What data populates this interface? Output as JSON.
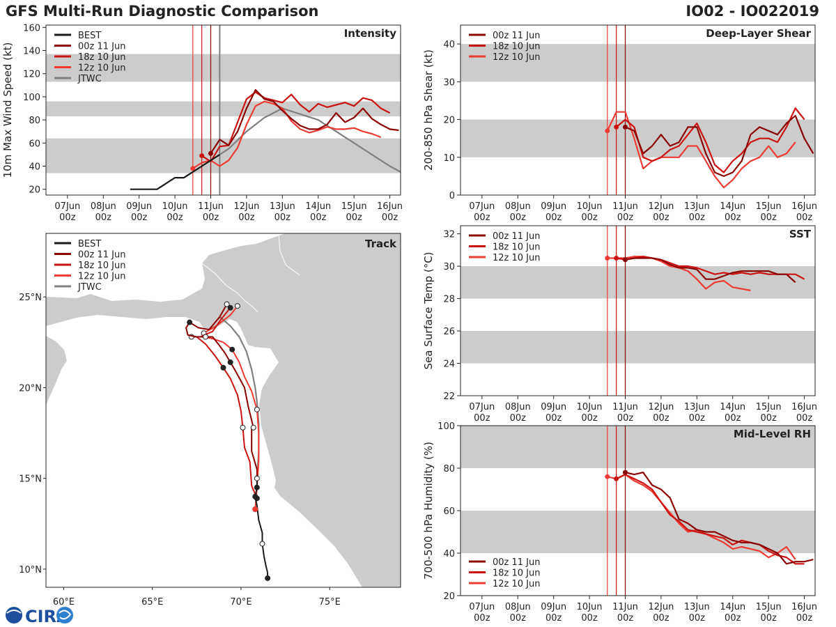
{
  "header": {
    "title": "GFS Multi-Run Diagnostic Comparison",
    "storm_id": "IO02 - IO022019"
  },
  "logo": {
    "text": "CIRA"
  },
  "colors": {
    "best": "#1a1a1a",
    "run00z11": "#8b0000",
    "run18z10": "#cc1111",
    "run12z10": "#ee3a33",
    "jtwc": "#808080",
    "band": "#cccccc",
    "axis": "#222222"
  },
  "time_axis": {
    "ticks": [
      {
        "t": 0,
        "day": "07Jun",
        "hour": "00z"
      },
      {
        "t": 1,
        "day": "08Jun",
        "hour": "00z"
      },
      {
        "t": 2,
        "day": "09Jun",
        "hour": "00z"
      },
      {
        "t": 3,
        "day": "10Jun",
        "hour": "00z"
      },
      {
        "t": 4,
        "day": "11Jun",
        "hour": "00z"
      },
      {
        "t": 5,
        "day": "12Jun",
        "hour": "00z"
      },
      {
        "t": 6,
        "day": "13Jun",
        "hour": "00z"
      },
      {
        "t": 7,
        "day": "14Jun",
        "hour": "00z"
      },
      {
        "t": 8,
        "day": "15Jun",
        "hour": "00z"
      },
      {
        "t": 9,
        "day": "16Jun",
        "hour": "00z"
      }
    ],
    "range": [
      -0.6,
      9.3
    ],
    "init_lines": [
      {
        "t": 3.5,
        "run": "run12z10"
      },
      {
        "t": 3.75,
        "run": "run18z10"
      },
      {
        "t": 4.0,
        "run": "run00z11"
      }
    ],
    "current_line": {
      "t": 4.25,
      "run": "jtwc"
    }
  },
  "chart_data": [
    {
      "id": "intensity",
      "type": "line",
      "title": "Intensity",
      "ylabel": "10m Max Wind Speed (kt)",
      "ylim": [
        15,
        162
      ],
      "yticks": [
        20,
        40,
        60,
        80,
        100,
        120,
        140,
        160
      ],
      "bands": [
        [
          34,
          64
        ],
        [
          83,
          96
        ],
        [
          113,
          137
        ]
      ],
      "legend": [
        "BEST",
        "00z 11 Jun",
        "18z 10 Jun",
        "12z 10 Jun",
        "JTWC"
      ],
      "legend_position": "top-left",
      "series": [
        {
          "name": "BEST",
          "color_key": "best",
          "x": [
            1.75,
            2.0,
            2.25,
            2.5,
            2.75,
            3.0,
            3.25,
            3.5,
            3.75,
            4.0,
            4.25
          ],
          "y": [
            20,
            20,
            20,
            20,
            25,
            30,
            30,
            35,
            40,
            45,
            50
          ]
        },
        {
          "name": "00z 11 Jun",
          "color_key": "run00z11",
          "x": [
            4.0,
            4.25,
            4.5,
            4.75,
            5.0,
            5.25,
            5.5,
            5.75,
            6.0,
            6.25,
            6.5,
            6.75,
            7.0,
            7.25,
            7.5,
            7.75,
            8.0,
            8.25,
            8.5,
            8.75,
            9.0,
            9.25
          ],
          "y": [
            51,
            63,
            58,
            70,
            90,
            106,
            98,
            96,
            88,
            81,
            75,
            72,
            72,
            76,
            86,
            78,
            82,
            90,
            81,
            76,
            72,
            71
          ]
        },
        {
          "name": "18z 10 Jun",
          "color_key": "run18z10",
          "x": [
            3.75,
            4.0,
            4.25,
            4.5,
            4.75,
            5.0,
            5.25,
            5.5,
            5.75,
            6.0,
            6.25,
            6.5,
            6.75,
            7.0,
            7.25,
            7.5,
            7.75,
            8.0,
            8.25,
            8.5,
            8.75,
            9.0
          ],
          "y": [
            49,
            44,
            57,
            58,
            78,
            98,
            104,
            99,
            97,
            95,
            102,
            93,
            87,
            94,
            91,
            93,
            95,
            92,
            99,
            97,
            90,
            86
          ]
        },
        {
          "name": "12z 10 Jun",
          "color_key": "run12z10",
          "x": [
            3.5,
            3.75,
            4.0,
            4.25,
            4.5,
            4.75,
            5.0,
            5.25,
            5.5,
            5.75,
            6.0,
            6.25,
            6.5,
            6.75,
            7.0,
            7.25,
            7.5,
            7.75,
            8.0,
            8.25,
            8.5,
            8.75
          ],
          "y": [
            38,
            43,
            45,
            40,
            45,
            56,
            76,
            92,
            96,
            94,
            90,
            79,
            72,
            69,
            71,
            74,
            72,
            72,
            73,
            70,
            68,
            65
          ]
        },
        {
          "name": "JTWC",
          "color_key": "jtwc",
          "x": [
            4.25,
            4.5,
            5.0,
            5.5,
            6.0,
            6.5,
            7.0,
            7.5,
            8.0,
            8.5,
            9.0,
            9.3
          ],
          "y": [
            50,
            55,
            70,
            82,
            90,
            85,
            80,
            70,
            60,
            50,
            40,
            35
          ]
        }
      ]
    },
    {
      "id": "shear",
      "type": "line",
      "title": "Deep-Layer Shear",
      "ylabel": "200-850 hPa Shear (kt)",
      "ylim": [
        0,
        45
      ],
      "yticks": [
        0,
        10,
        20,
        30,
        40
      ],
      "bands": [
        [
          10,
          20
        ],
        [
          30,
          40
        ]
      ],
      "legend": [
        "00z 11 Jun",
        "18z 10 Jun",
        "12z 10 Jun"
      ],
      "legend_position": "top-left",
      "series": [
        {
          "name": "00z 11 Jun",
          "color_key": "run00z11",
          "x": [
            4.0,
            4.25,
            4.5,
            4.75,
            5.0,
            5.25,
            5.5,
            5.75,
            6.0,
            6.25,
            6.5,
            6.75,
            7.0,
            7.25,
            7.5,
            7.75,
            8.0,
            8.25,
            8.5,
            8.75,
            9.0,
            9.25
          ],
          "y": [
            18,
            17,
            11,
            13,
            16,
            13,
            14,
            18,
            18,
            11,
            6,
            5,
            6,
            9,
            16,
            18,
            17,
            16,
            19,
            21,
            15,
            11
          ]
        },
        {
          "name": "18z 10 Jun",
          "color_key": "run18z10",
          "x": [
            3.75,
            4.0,
            4.25,
            4.5,
            4.75,
            5.0,
            5.25,
            5.5,
            5.75,
            6.0,
            6.25,
            6.5,
            6.75,
            7.0,
            7.25,
            7.5,
            7.75,
            8.0,
            8.25,
            8.5,
            8.75,
            9.0
          ],
          "y": [
            18,
            20,
            18,
            10,
            9,
            10,
            12,
            13,
            16,
            19,
            14,
            8,
            6,
            9,
            11,
            14,
            15,
            15,
            14,
            18,
            23,
            20
          ]
        },
        {
          "name": "12z 10 Jun",
          "color_key": "run12z10",
          "x": [
            3.5,
            3.75,
            4.0,
            4.25,
            4.5,
            4.75,
            5.0,
            5.25,
            5.5,
            5.75,
            6.0,
            6.25,
            6.5,
            6.75,
            7.0,
            7.25,
            7.5,
            7.75,
            8.0,
            8.25,
            8.5,
            8.75
          ],
          "y": [
            17,
            22,
            22,
            15,
            7,
            9,
            10,
            10,
            10,
            13,
            13,
            9,
            5,
            2,
            4,
            7,
            9,
            10,
            13,
            10,
            11,
            14
          ]
        }
      ]
    },
    {
      "id": "sst",
      "type": "line",
      "title": "SST",
      "ylabel": "Sea Surface Temp (°C)",
      "ylim": [
        22,
        32.5
      ],
      "yticks": [
        22,
        24,
        26,
        28,
        30,
        32
      ],
      "bands": [
        [
          24,
          26
        ],
        [
          28,
          30
        ]
      ],
      "legend": [
        "00z 11 Jun",
        "18z 10 Jun",
        "12z 10 Jun"
      ],
      "legend_position": "top-left",
      "series": [
        {
          "name": "00z 11 Jun",
          "color_key": "run00z11",
          "x": [
            4.0,
            4.25,
            4.5,
            4.75,
            5.0,
            5.25,
            5.5,
            5.75,
            6.0,
            6.25,
            6.5,
            6.75,
            7.0,
            7.25,
            7.5,
            7.75,
            8.0,
            8.25,
            8.5,
            8.75
          ],
          "y": [
            30.4,
            30.5,
            30.5,
            30.5,
            30.4,
            30.1,
            29.9,
            29.9,
            29.8,
            29.2,
            29.2,
            29.4,
            29.6,
            29.7,
            29.7,
            29.7,
            29.7,
            29.5,
            29.5,
            29.0
          ]
        },
        {
          "name": "18z 10 Jun",
          "color_key": "run18z10",
          "x": [
            3.75,
            4.0,
            4.25,
            4.5,
            4.75,
            5.0,
            5.25,
            5.5,
            5.75,
            6.0,
            6.25,
            6.5,
            6.75,
            7.0,
            7.25,
            7.5,
            7.75,
            8.0,
            8.25,
            8.5,
            8.75,
            9.0
          ],
          "y": [
            30.5,
            30.4,
            30.5,
            30.6,
            30.5,
            30.4,
            30.2,
            30.0,
            30.0,
            29.9,
            29.7,
            29.5,
            29.6,
            29.5,
            29.6,
            29.5,
            29.6,
            29.5,
            29.5,
            29.5,
            29.5,
            29.2
          ]
        },
        {
          "name": "12z 10 Jun",
          "color_key": "run12z10",
          "x": [
            3.5,
            3.75,
            4.0,
            4.25,
            4.5,
            4.75,
            5.0,
            5.25,
            5.5,
            5.75,
            6.0,
            6.25,
            6.5,
            6.75,
            7.0,
            7.25,
            7.5
          ],
          "y": [
            30.5,
            30.5,
            30.5,
            30.6,
            30.6,
            30.5,
            30.3,
            30.0,
            29.9,
            29.7,
            29.2,
            28.6,
            29.0,
            29.1,
            28.7,
            28.6,
            28.5
          ]
        }
      ]
    },
    {
      "id": "rh",
      "type": "line",
      "title": "Mid-Level RH",
      "ylabel": "700-500 hPa Humidity (%)",
      "ylim": [
        20,
        100
      ],
      "yticks": [
        20,
        40,
        60,
        80,
        100
      ],
      "bands": [
        [
          40,
          60
        ],
        [
          80,
          100
        ]
      ],
      "legend": [
        "00z 11 Jun",
        "18z 10 Jun",
        "12z 10 Jun"
      ],
      "legend_position": "bottom-left",
      "series": [
        {
          "name": "00z 11 Jun",
          "color_key": "run00z11",
          "x": [
            4.0,
            4.25,
            4.5,
            4.75,
            5.0,
            5.25,
            5.5,
            5.75,
            6.0,
            6.25,
            6.5,
            6.75,
            7.0,
            7.25,
            7.5,
            7.75,
            8.0,
            8.25,
            8.5,
            8.75,
            9.0,
            9.25
          ],
          "y": [
            78,
            77,
            78,
            72,
            70,
            66,
            56,
            54,
            51,
            50,
            50,
            48,
            46,
            45,
            45,
            44,
            42,
            40,
            35,
            36,
            36,
            37
          ]
        },
        {
          "name": "18z 10 Jun",
          "color_key": "run18z10",
          "x": [
            3.75,
            4.0,
            4.25,
            4.5,
            4.75,
            5.0,
            5.25,
            5.5,
            5.75,
            6.0,
            6.25,
            6.5,
            6.75,
            7.0,
            7.25,
            7.5,
            7.75,
            8.0,
            8.25,
            8.5,
            8.75,
            9.0
          ],
          "y": [
            75,
            77,
            75,
            73,
            70,
            64,
            58,
            55,
            51,
            50,
            49,
            48,
            47,
            44,
            46,
            45,
            44,
            41,
            39,
            38,
            35,
            35
          ]
        },
        {
          "name": "12z 10 Jun",
          "color_key": "run12z10",
          "x": [
            3.5,
            3.75,
            4.0,
            4.25,
            4.5,
            4.75,
            5.0,
            5.25,
            5.5,
            5.75,
            6.0,
            6.25,
            6.5,
            6.75,
            7.0,
            7.25,
            7.5,
            7.75,
            8.0,
            8.25,
            8.5,
            8.75
          ],
          "y": [
            76,
            75,
            77,
            74,
            72,
            69,
            64,
            59,
            54,
            50,
            51,
            49,
            47,
            45,
            42,
            43,
            42,
            41,
            38,
            40,
            43,
            37
          ]
        }
      ]
    },
    {
      "id": "track",
      "type": "scatter",
      "title": "Track",
      "xlim": [
        59,
        79
      ],
      "ylim": [
        9,
        28.5
      ],
      "xticks": [
        {
          "v": 60,
          "label": "60°E"
        },
        {
          "v": 65,
          "label": "65°E"
        },
        {
          "v": 70,
          "label": "70°E"
        },
        {
          "v": 75,
          "label": "75°E"
        }
      ],
      "yticks": [
        {
          "v": 10,
          "label": "10°N"
        },
        {
          "v": 15,
          "label": "15°N"
        },
        {
          "v": 20,
          "label": "20°N"
        },
        {
          "v": 25,
          "label": "25°N"
        }
      ],
      "legend": [
        "BEST",
        "00z 11 Jun",
        "18z 10 Jun",
        "12z 10 Jun",
        "JTWC"
      ],
      "legend_position": "top-left",
      "tracks": [
        {
          "name": "BEST",
          "color_key": "best",
          "lon": [
            71.5,
            71.5,
            71.4,
            71.3,
            71.2,
            71.2,
            71.0,
            70.9,
            70.8,
            70.9,
            70.9
          ],
          "lat": [
            9.5,
            9.8,
            10.2,
            10.7,
            11.4,
            12.0,
            12.7,
            13.5,
            14.0,
            14.5,
            15.0
          ]
        },
        {
          "name": "00z 11 Jun",
          "color_key": "run00z11",
          "lon": [
            70.9,
            70.9,
            70.6,
            70.6,
            70.7,
            70.4,
            70.2,
            69.7,
            69.4,
            69.1,
            68.8,
            68.4,
            68.0,
            67.5,
            67.0,
            66.9,
            67.1,
            67.6,
            68.2,
            68.8,
            69.2
          ],
          "lat": [
            14.5,
            15.5,
            16.5,
            17.8,
            17.8,
            19.0,
            20.0,
            20.9,
            21.4,
            21.9,
            22.3,
            22.8,
            22.8,
            22.8,
            22.9,
            23.3,
            23.6,
            23.3,
            23.2,
            23.9,
            24.6
          ]
        },
        {
          "name": "18z 10 Jun",
          "color_key": "run18z10",
          "lon": [
            70.9,
            70.6,
            70.5,
            70.2,
            70.1,
            70.0,
            69.8,
            69.4,
            69.0,
            68.5,
            68.0,
            67.5,
            67.2,
            67.7,
            68.4,
            68.9,
            69.4
          ],
          "lat": [
            13.9,
            14.6,
            15.9,
            16.7,
            17.8,
            18.7,
            19.6,
            20.5,
            21.1,
            21.8,
            22.4,
            22.8,
            22.8,
            22.8,
            23.1,
            23.8,
            24.4
          ]
        },
        {
          "name": "12z 10 Jun",
          "color_key": "run12z10",
          "lon": [
            70.8,
            70.9,
            71.0,
            71.0,
            70.9,
            70.6,
            70.2,
            69.9,
            69.5,
            69.0,
            68.4,
            67.8,
            67.9,
            68.6,
            69.4,
            69.8
          ],
          "lat": [
            13.3,
            14.5,
            16.0,
            17.5,
            18.8,
            19.8,
            20.6,
            21.4,
            22.1,
            22.5,
            22.7,
            22.8,
            23.0,
            23.4,
            24.0,
            24.5
          ]
        },
        {
          "name": "JTWC",
          "color_key": "jtwc",
          "lon": [
            70.9,
            71.0,
            71.0,
            70.9,
            70.8,
            70.6,
            70.3,
            69.9,
            69.4,
            68.8
          ],
          "lat": [
            15.0,
            16.5,
            18.0,
            19.2,
            20.0,
            21.0,
            22.0,
            22.8,
            23.4,
            23.9
          ]
        }
      ]
    }
  ]
}
